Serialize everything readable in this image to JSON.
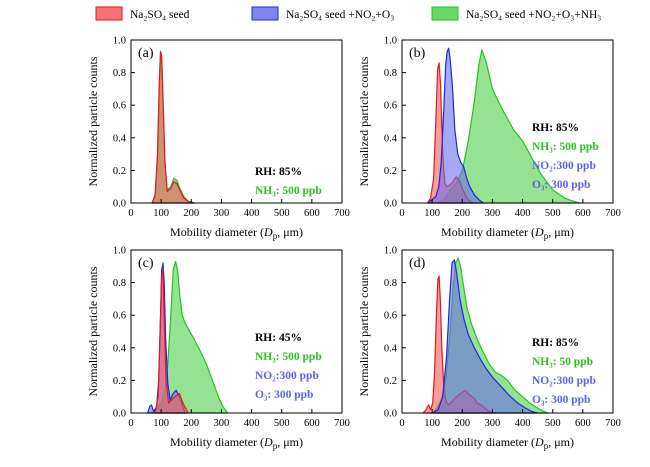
{
  "legend": [
    {
      "key": "seed",
      "label": "Na₂SO₄ seed",
      "fill": "#f55b5b",
      "stroke": "#e0191e"
    },
    {
      "key": "no2o3",
      "label": "Na₂SO₄ seed +NO₂+O₃",
      "fill": "#6b6ee8",
      "stroke": "#2226d8"
    },
    {
      "key": "nh3",
      "label": "Na₂SO₄ seed +NO₂+O₃+NH₃",
      "fill": "#4fd14a",
      "stroke": "#21c41c"
    }
  ],
  "chart_data": [
    {
      "type": "area",
      "panel": "(a)",
      "xlabel": "Mobility diameter (Dp, μm)",
      "ylabel": "Normalized particle counts",
      "xlim": [
        0,
        700
      ],
      "ylim": [
        0,
        1.0
      ],
      "xticks": [
        "0",
        "100",
        "200",
        "300",
        "400",
        "500",
        "600",
        "700"
      ],
      "yticks": [
        "0.0",
        "0.2",
        "0.4",
        "0.6",
        "0.8",
        "1.0"
      ],
      "annotations": [
        {
          "text": "RH: 85%",
          "color": "#000000"
        },
        {
          "text": "NH₃: 500 ppb",
          "color": "#2bc21f"
        }
      ],
      "series": [
        {
          "key": "nh3",
          "x": [
            70,
            80,
            88,
            94,
            98,
            102,
            106,
            112,
            120,
            132,
            142,
            152,
            162,
            175,
            190,
            210
          ],
          "y": [
            0,
            0.04,
            0.25,
            0.7,
            0.9,
            0.88,
            0.6,
            0.25,
            0.08,
            0.1,
            0.15,
            0.14,
            0.09,
            0.04,
            0.01,
            0
          ]
        },
        {
          "key": "seed",
          "x": [
            70,
            80,
            88,
            94,
            98,
            102,
            106,
            112,
            120,
            132,
            142,
            152,
            162,
            175,
            190,
            210
          ],
          "y": [
            0,
            0.05,
            0.3,
            0.75,
            0.93,
            0.9,
            0.65,
            0.27,
            0.07,
            0.09,
            0.13,
            0.12,
            0.08,
            0.03,
            0.01,
            0
          ]
        }
      ]
    },
    {
      "type": "area",
      "panel": "(b)",
      "xlabel": "Mobility diameter (Dp, μm)",
      "ylabel": "Normalized particle counts",
      "xlim": [
        0,
        700
      ],
      "ylim": [
        0,
        1.0
      ],
      "xticks": [
        "0",
        "100",
        "200",
        "300",
        "400",
        "500",
        "600",
        "700"
      ],
      "yticks": [
        "0.0",
        "0.2",
        "0.4",
        "0.6",
        "0.8",
        "1.0"
      ],
      "annotations": [
        {
          "text": "RH: 85%",
          "color": "#000000"
        },
        {
          "text": "NH₃: 500 ppb",
          "color": "#2bc21f"
        },
        {
          "text": "NO₂:300 ppb",
          "color": "#5a63e8"
        },
        {
          "text": "O₃: 300 ppb",
          "color": "#5a63e8"
        }
      ],
      "series": [
        {
          "key": "nh3",
          "x": [
            120,
            140,
            160,
            180,
            200,
            220,
            240,
            255,
            265,
            280,
            300,
            320,
            340,
            370,
            400,
            430,
            460,
            500,
            540,
            570,
            590
          ],
          "y": [
            0,
            0.02,
            0.08,
            0.12,
            0.2,
            0.38,
            0.62,
            0.85,
            0.94,
            0.86,
            0.7,
            0.62,
            0.55,
            0.45,
            0.38,
            0.28,
            0.18,
            0.08,
            0.03,
            0.01,
            0
          ]
        },
        {
          "key": "seed",
          "x": [
            85,
            95,
            105,
            112,
            118,
            123,
            128,
            135,
            142,
            150,
            158,
            165,
            172,
            180,
            190,
            200,
            210,
            220,
            235
          ],
          "y": [
            0,
            0.03,
            0.15,
            0.5,
            0.82,
            0.86,
            0.72,
            0.3,
            0.12,
            0.1,
            0.11,
            0.12,
            0.14,
            0.16,
            0.14,
            0.09,
            0.05,
            0.02,
            0
          ]
        },
        {
          "key": "no2o3",
          "x": [
            85,
            100,
            112,
            122,
            130,
            138,
            145,
            150,
            155,
            160,
            168,
            175,
            185,
            195,
            205,
            215,
            225,
            240,
            255,
            270
          ],
          "y": [
            0,
            0.02,
            0.04,
            0.1,
            0.25,
            0.55,
            0.85,
            0.93,
            0.95,
            0.88,
            0.7,
            0.45,
            0.3,
            0.25,
            0.22,
            0.15,
            0.1,
            0.05,
            0.02,
            0
          ]
        }
      ]
    },
    {
      "type": "area",
      "panel": "(c)",
      "xlabel": "Mobility diameter (Dp, μm)",
      "ylabel": "Normalized particle counts",
      "xlim": [
        0,
        700
      ],
      "ylim": [
        0,
        1.0
      ],
      "xticks": [
        "0",
        "100",
        "200",
        "300",
        "400",
        "500",
        "600",
        "700"
      ],
      "yticks": [
        "0.0",
        "0.2",
        "0.4",
        "0.6",
        "0.8",
        "1.0"
      ],
      "annotations": [
        {
          "text": "RH: 45%",
          "color": "#000000"
        },
        {
          "text": "NH₃: 500 ppb",
          "color": "#2bc21f"
        },
        {
          "text": "NO₂:300 ppb",
          "color": "#5a63e8"
        },
        {
          "text": "O₃: 300 ppb",
          "color": "#5a63e8"
        }
      ],
      "series": [
        {
          "key": "nh3",
          "x": [
            70,
            85,
            100,
            112,
            122,
            132,
            140,
            148,
            155,
            162,
            170,
            180,
            195,
            210,
            230,
            250,
            270,
            290,
            305,
            320
          ],
          "y": [
            0,
            0.02,
            0.06,
            0.12,
            0.3,
            0.6,
            0.88,
            0.93,
            0.87,
            0.72,
            0.6,
            0.55,
            0.5,
            0.45,
            0.38,
            0.3,
            0.2,
            0.1,
            0.04,
            0
          ]
        },
        {
          "key": "no2o3",
          "x": [
            55,
            62,
            68,
            75,
            85,
            92,
            98,
            102,
            106,
            110,
            115,
            122,
            130,
            140,
            150,
            160,
            170,
            180
          ],
          "y": [
            0,
            0.04,
            0.05,
            0.01,
            0.04,
            0.2,
            0.6,
            0.88,
            0.92,
            0.8,
            0.45,
            0.18,
            0.08,
            0.12,
            0.14,
            0.1,
            0.05,
            0
          ]
        },
        {
          "key": "seed",
          "x": [
            80,
            90,
            97,
            102,
            106,
            110,
            116,
            125,
            140,
            160,
            175,
            190
          ],
          "y": [
            0,
            0.1,
            0.5,
            0.85,
            0.88,
            0.6,
            0.2,
            0.06,
            0.09,
            0.12,
            0.05,
            0
          ]
        }
      ]
    },
    {
      "type": "area",
      "panel": "(d)",
      "xlabel": "Mobility diameter (Dp, μm)",
      "ylabel": "Normalized particle counts",
      "xlim": [
        0,
        700
      ],
      "ylim": [
        0,
        1.0
      ],
      "xticks": [
        "0",
        "100",
        "200",
        "300",
        "400",
        "500",
        "600",
        "700"
      ],
      "yticks": [
        "0.0",
        "0.2",
        "0.4",
        "0.6",
        "0.8",
        "1.0"
      ],
      "annotations": [
        {
          "text": "RH: 85%",
          "color": "#000000"
        },
        {
          "text": "NH₃: 50 ppb",
          "color": "#2bc21f"
        },
        {
          "text": "NO₂:300 ppb",
          "color": "#5a63e8"
        },
        {
          "text": "O₃: 300 ppb",
          "color": "#5a63e8"
        }
      ],
      "series": [
        {
          "key": "nh3",
          "x": [
            100,
            115,
            130,
            145,
            160,
            170,
            178,
            186,
            194,
            204,
            215,
            230,
            250,
            270,
            290,
            310,
            330,
            350,
            375,
            400,
            425,
            450,
            470,
            485
          ],
          "y": [
            0,
            0.03,
            0.08,
            0.2,
            0.5,
            0.78,
            0.92,
            0.95,
            0.9,
            0.78,
            0.65,
            0.55,
            0.45,
            0.37,
            0.3,
            0.25,
            0.23,
            0.2,
            0.14,
            0.1,
            0.06,
            0.03,
            0.01,
            0
          ]
        },
        {
          "key": "seed",
          "x": [
            70,
            80,
            88,
            95,
            102,
            108,
            114,
            119,
            123,
            127,
            132,
            138,
            145,
            152,
            160,
            170,
            180,
            195,
            210,
            225,
            240,
            250,
            262,
            275,
            290,
            310
          ],
          "y": [
            0,
            0.02,
            0.05,
            0.02,
            0.06,
            0.25,
            0.6,
            0.82,
            0.84,
            0.7,
            0.4,
            0.18,
            0.08,
            0.05,
            0.06,
            0.08,
            0.1,
            0.12,
            0.14,
            0.11,
            0.09,
            0.06,
            0.05,
            0.03,
            0.01,
            0
          ]
        },
        {
          "key": "no2o3",
          "x": [
            100,
            120,
            135,
            148,
            158,
            166,
            174,
            182,
            192,
            205,
            220,
            240,
            260,
            280,
            300,
            320,
            340,
            360,
            385,
            410,
            430,
            450
          ],
          "y": [
            0,
            0.02,
            0.1,
            0.35,
            0.7,
            0.92,
            0.94,
            0.85,
            0.7,
            0.58,
            0.48,
            0.4,
            0.33,
            0.27,
            0.22,
            0.18,
            0.14,
            0.1,
            0.06,
            0.03,
            0.01,
            0
          ]
        }
      ]
    }
  ]
}
